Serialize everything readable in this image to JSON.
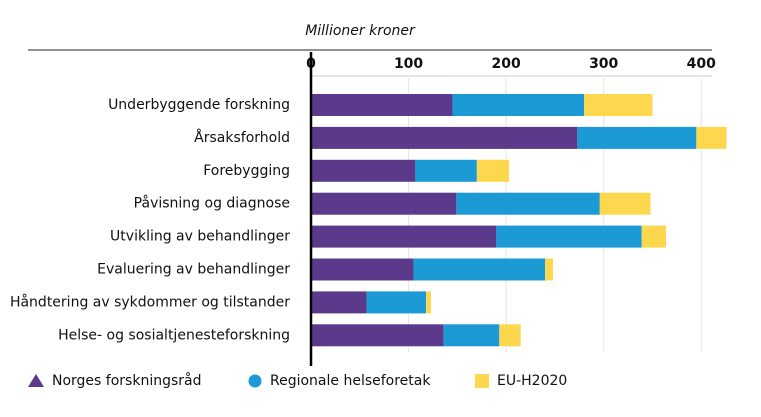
{
  "chart_data": {
    "type": "stacked-bar-horizontal",
    "x_label": "Millioner kroner",
    "categories": [
      "Underbyggende forskning",
      "Årsaksforhold",
      "Forebygging",
      "Påvisning og diagnose",
      "Utvikling av behandlinger",
      "Evaluering av behandlinger",
      "Håndtering av sykdommer og tilstander",
      "Helse- og sosialtjenesteforskning"
    ],
    "series": [
      {
        "name": "Norges forskningsråd",
        "color": "#5b3a8c",
        "values": [
          145,
          273,
          107,
          149,
          190,
          105,
          57,
          136
        ]
      },
      {
        "name": "Regionale helseforetak",
        "color": "#1b9ad6",
        "values": [
          135,
          122,
          63,
          147,
          149,
          135,
          61,
          57
        ]
      },
      {
        "name": "EU-H2020",
        "color": "#fdd84e",
        "values": [
          70,
          31,
          33,
          52,
          25,
          8,
          5,
          22
        ]
      }
    ],
    "xlim": [
      0,
      410
    ],
    "xticks": [
      0,
      100,
      200,
      300,
      400
    ],
    "grid": true
  }
}
